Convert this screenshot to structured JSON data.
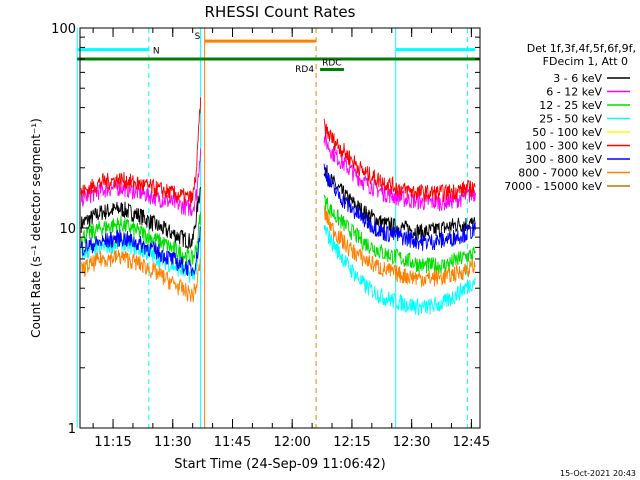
{
  "chart_data": {
    "type": "line",
    "title": "RHESSI Count Rates",
    "xlabel": "Start Time (24-Sep-09 11:06:42)",
    "ylabel": "Count Rate (s⁻¹ detector segment⁻¹)",
    "yscale": "log",
    "ylim": [
      1,
      100
    ],
    "x_range": [
      "11:06",
      "12:47"
    ],
    "x_tick_labels": [
      "11:15",
      "11:30",
      "11:45",
      "12:00",
      "12:15",
      "12:30",
      "12:45"
    ],
    "y_tick_labels": [
      "1",
      "10",
      "100"
    ],
    "legend_header": [
      "Det 1f,3f,4f,5f,6f,9f,",
      "FDecim 1, Att 0"
    ],
    "legend_position": "right",
    "footer_timestamp": "15-Oct-2021 20:43",
    "series": [
      {
        "name": "3 - 6 keV",
        "color": "#000000",
        "points": [
          [
            "11:07",
            10.5
          ],
          [
            "11:12",
            12
          ],
          [
            "11:17",
            12.5
          ],
          [
            "11:22",
            11.5
          ],
          [
            "11:27",
            10
          ],
          [
            "11:32",
            9
          ],
          [
            "11:35",
            8.5
          ],
          [
            "11:36",
            12
          ],
          [
            "11:37",
            16
          ],
          [
            "12:08",
            20
          ],
          [
            "12:10",
            17
          ],
          [
            "12:14",
            14
          ],
          [
            "12:18",
            12
          ],
          [
            "12:23",
            10.5
          ],
          [
            "12:28",
            10
          ],
          [
            "12:33",
            9.5
          ],
          [
            "12:38",
            10
          ],
          [
            "12:42",
            10.5
          ],
          [
            "12:46",
            10.5
          ]
        ]
      },
      {
        "name": "6 - 12 keV",
        "color": "#ff00ff",
        "points": [
          [
            "11:07",
            14
          ],
          [
            "11:12",
            15.5
          ],
          [
            "11:17",
            16
          ],
          [
            "11:22",
            15
          ],
          [
            "11:27",
            14
          ],
          [
            "11:32",
            13
          ],
          [
            "11:35",
            12.5
          ],
          [
            "11:36",
            15
          ],
          [
            "11:37",
            25
          ],
          [
            "12:08",
            28
          ],
          [
            "12:10",
            24
          ],
          [
            "12:14",
            20
          ],
          [
            "12:18",
            17
          ],
          [
            "12:23",
            15
          ],
          [
            "12:28",
            14
          ],
          [
            "12:33",
            13.5
          ],
          [
            "12:38",
            13.5
          ],
          [
            "12:42",
            14
          ],
          [
            "12:46",
            15
          ]
        ]
      },
      {
        "name": "12 - 25 keV",
        "color": "#00dd00",
        "points": [
          [
            "11:07",
            9
          ],
          [
            "11:12",
            10
          ],
          [
            "11:17",
            10.5
          ],
          [
            "11:22",
            9.5
          ],
          [
            "11:27",
            8.5
          ],
          [
            "11:32",
            7.5
          ],
          [
            "11:35",
            7
          ],
          [
            "11:36",
            8
          ],
          [
            "11:37",
            12
          ],
          [
            "12:08",
            14
          ],
          [
            "12:10",
            12
          ],
          [
            "12:14",
            10
          ],
          [
            "12:18",
            8.5
          ],
          [
            "12:23",
            7.5
          ],
          [
            "12:28",
            7
          ],
          [
            "12:33",
            6.5
          ],
          [
            "12:38",
            6.5
          ],
          [
            "12:42",
            7
          ],
          [
            "12:46",
            7.5
          ]
        ]
      },
      {
        "name": "25 - 50 keV",
        "color": "#00ffff",
        "points": [
          [
            "11:07",
            7.5
          ],
          [
            "11:12",
            8
          ],
          [
            "11:17",
            8.5
          ],
          [
            "11:22",
            7.8
          ],
          [
            "11:27",
            7
          ],
          [
            "11:32",
            6.2
          ],
          [
            "11:35",
            5.8
          ],
          [
            "11:36",
            6.5
          ],
          [
            "11:37",
            9
          ],
          [
            "12:08",
            10
          ],
          [
            "12:10",
            8.5
          ],
          [
            "12:14",
            6.5
          ],
          [
            "12:18",
            5.2
          ],
          [
            "12:23",
            4.5
          ],
          [
            "12:28",
            4.2
          ],
          [
            "12:33",
            4
          ],
          [
            "12:38",
            4.2
          ],
          [
            "12:42",
            4.8
          ],
          [
            "12:46",
            5.5
          ]
        ]
      },
      {
        "name": "50 - 100 keV",
        "color": "#ffff00",
        "points": []
      },
      {
        "name": "100 - 300 keV",
        "color": "#ff0000",
        "points": [
          [
            "11:07",
            15
          ],
          [
            "11:12",
            17
          ],
          [
            "11:17",
            17.5
          ],
          [
            "11:22",
            16.5
          ],
          [
            "11:27",
            15.5
          ],
          [
            "11:32",
            14.5
          ],
          [
            "11:35",
            14
          ],
          [
            "11:36",
            20
          ],
          [
            "11:37",
            45
          ],
          [
            "12:08",
            32
          ],
          [
            "12:10",
            28
          ],
          [
            "12:14",
            23
          ],
          [
            "12:18",
            19
          ],
          [
            "12:23",
            17
          ],
          [
            "12:28",
            15.5
          ],
          [
            "12:33",
            15
          ],
          [
            "12:38",
            15
          ],
          [
            "12:42",
            15.5
          ],
          [
            "12:46",
            16
          ]
        ]
      },
      {
        "name": "300 - 800 keV",
        "color": "#0000ff",
        "points": [
          [
            "11:07",
            8
          ],
          [
            "11:12",
            8.5
          ],
          [
            "11:17",
            9
          ],
          [
            "11:22",
            8.3
          ],
          [
            "11:27",
            7.5
          ],
          [
            "11:32",
            6.6
          ],
          [
            "11:35",
            6.2
          ],
          [
            "11:36",
            7
          ],
          [
            "11:37",
            10
          ],
          [
            "12:08",
            20
          ],
          [
            "12:10",
            16
          ],
          [
            "12:14",
            13
          ],
          [
            "12:18",
            11
          ],
          [
            "12:23",
            9.5
          ],
          [
            "12:28",
            9
          ],
          [
            "12:33",
            8.5
          ],
          [
            "12:38",
            8.7
          ],
          [
            "12:42",
            9.2
          ],
          [
            "12:46",
            9.8
          ]
        ]
      },
      {
        "name": "800 - 7000 keV",
        "color": "#ff8000",
        "points": [
          [
            "11:07",
            6.2
          ],
          [
            "11:12",
            7
          ],
          [
            "11:17",
            7.2
          ],
          [
            "11:22",
            6.6
          ],
          [
            "11:27",
            5.8
          ],
          [
            "11:32",
            5
          ],
          [
            "11:35",
            4.6
          ],
          [
            "11:36",
            5.2
          ],
          [
            "11:37",
            7
          ],
          [
            "12:08",
            12
          ],
          [
            "12:10",
            10
          ],
          [
            "12:14",
            8
          ],
          [
            "12:18",
            7
          ],
          [
            "12:23",
            6.2
          ],
          [
            "12:28",
            5.8
          ],
          [
            "12:33",
            5.6
          ],
          [
            "12:38",
            5.7
          ],
          [
            "12:42",
            6
          ],
          [
            "12:46",
            6.5
          ]
        ]
      },
      {
        "name": "7000 - 15000 keV",
        "color": "#b87800",
        "points": []
      }
    ],
    "annotations": [
      {
        "label": "N",
        "color": "#00ffff",
        "y_value": 78,
        "from": "11:06",
        "to": "11:24"
      },
      {
        "label": "N",
        "color": "#00ffff",
        "y_value": 78,
        "from": "12:26",
        "to": "12:46"
      },
      {
        "label": "S",
        "color": "#ff8000",
        "y_value": 86,
        "from": "11:38",
        "to": "12:06"
      },
      {
        "label": "RD4",
        "color": "#008000",
        "y_value": 70,
        "from": "11:06",
        "to": "12:47"
      },
      {
        "label": "RDC",
        "color": "#008000",
        "y_value": 62,
        "from": "12:07",
        "to": "12:13"
      }
    ],
    "vertical_markers": [
      {
        "time": "11:06",
        "color": "#00ffff",
        "style": "solid"
      },
      {
        "time": "11:24",
        "color": "#00ffff",
        "style": "dashed"
      },
      {
        "time": "11:37",
        "color": "#00ffff",
        "style": "solid"
      },
      {
        "time": "11:38",
        "color": "#ff8000",
        "style": "solid"
      },
      {
        "time": "12:06",
        "color": "#ff8000",
        "style": "dashed"
      },
      {
        "time": "12:26",
        "color": "#00ffff",
        "style": "solid"
      },
      {
        "time": "12:44",
        "color": "#00ffff",
        "style": "dashed"
      }
    ]
  }
}
